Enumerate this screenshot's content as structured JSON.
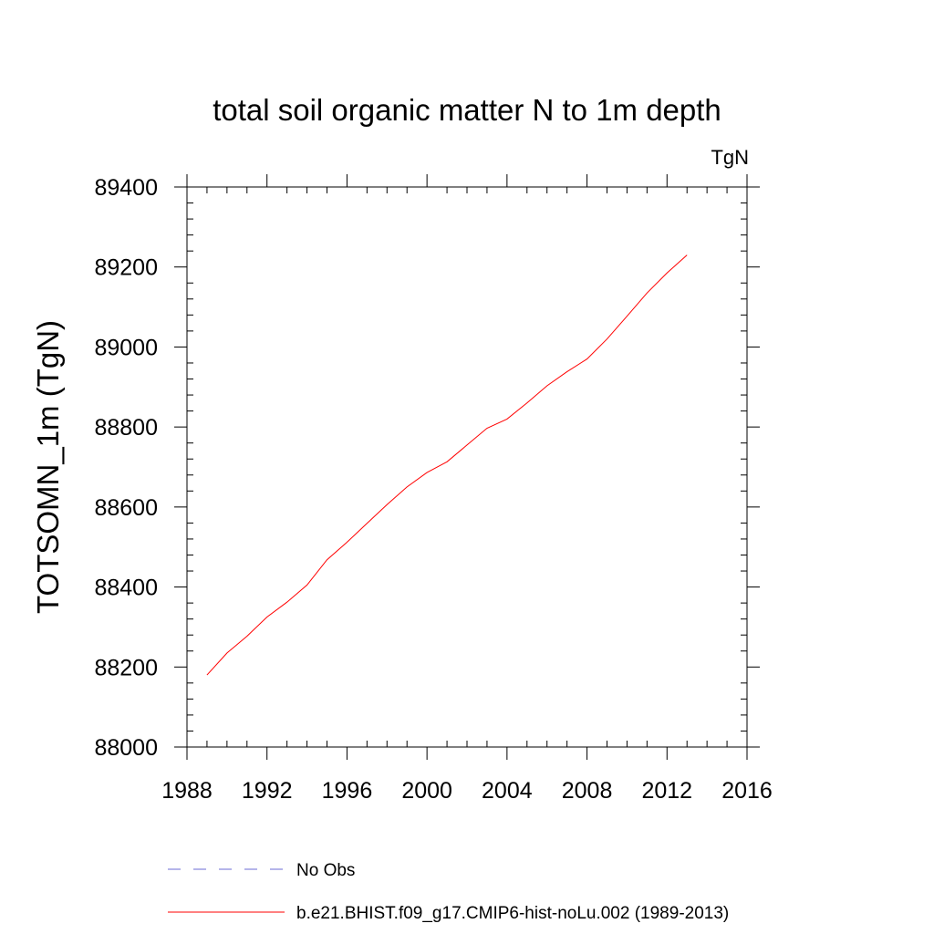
{
  "chart_data": {
    "type": "line",
    "title": "total soil organic matter N to 1m depth",
    "units_label": "TgN",
    "ylabel": "TOTSOMN_1m  (TgN)",
    "xlabel": "",
    "xlim": [
      1988,
      2016
    ],
    "ylim": [
      88000,
      89400
    ],
    "x_ticks": [
      1988,
      1992,
      1996,
      2000,
      2004,
      2008,
      2012,
      2016
    ],
    "y_ticks": [
      88000,
      88200,
      88400,
      88600,
      88800,
      89000,
      89200,
      89400
    ],
    "x_minor_step": 1,
    "y_minor_step": 40,
    "grid": false,
    "legend_position": "bottom",
    "series": [
      {
        "name": "No Obs",
        "color": "#6b6bd6",
        "dash": "dashed",
        "x": [],
        "y": []
      },
      {
        "name": "b.e21.BHIST.f09_g17.CMIP6-hist-noLu.002 (1989-2013)",
        "color": "#ff0000",
        "dash": "solid",
        "x": [
          1989,
          1990,
          1991,
          1992,
          1993,
          1994,
          1995,
          1996,
          1997,
          1998,
          1999,
          2000,
          2001,
          2002,
          2003,
          2004,
          2005,
          2006,
          2007,
          2008,
          2009,
          2010,
          2011,
          2012,
          2013
        ],
        "y": [
          88180,
          88235,
          88277,
          88325,
          88362,
          88405,
          88468,
          88512,
          88559,
          88606,
          88650,
          88686,
          88713,
          88755,
          88797,
          88820,
          88860,
          88903,
          88938,
          88970,
          89020,
          89077,
          89135,
          89185,
          89230
        ]
      }
    ]
  }
}
